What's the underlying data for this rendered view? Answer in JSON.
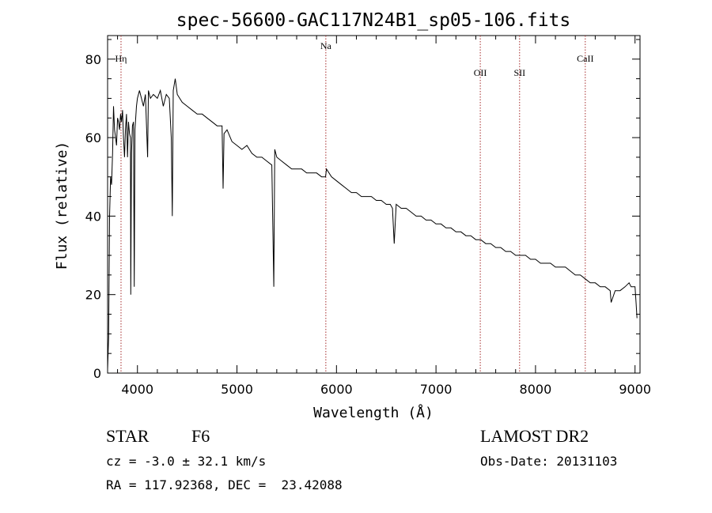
{
  "chart_data": {
    "type": "line",
    "title": "spec-56600-GAC117N24B1_sp05-106.fits",
    "xlabel": "Wavelength (Å)",
    "ylabel": "Flux (relative)",
    "xlim": [
      3700,
      9050
    ],
    "ylim": [
      0,
      86
    ],
    "xticks": [
      4000,
      5000,
      6000,
      7000,
      8000,
      9000
    ],
    "yticks": [
      0,
      20,
      40,
      60,
      80
    ],
    "grid": false,
    "lines": [
      {
        "label": "Hη",
        "x": 3835
      },
      {
        "label": "Na",
        "x": 5893
      },
      {
        "label": "OII",
        "x": 7445
      },
      {
        "label": "SII",
        "x": 7840
      },
      {
        "label": "CaII",
        "x": 8500
      }
    ],
    "series": [
      {
        "x": [
          3700,
          3710,
          3720,
          3730,
          3740,
          3750,
          3760,
          3770,
          3780,
          3790,
          3800,
          3810,
          3820,
          3830,
          3840,
          3850,
          3860,
          3870,
          3880,
          3890,
          3900,
          3910,
          3920,
          3930,
          3933,
          3940,
          3950,
          3960,
          3968,
          3975,
          3990,
          4000,
          4020,
          4040,
          4060,
          4080,
          4102,
          4110,
          4130,
          4160,
          4200,
          4230,
          4260,
          4290,
          4320,
          4340,
          4350,
          4360,
          4380,
          4400,
          4450,
          4500,
          4550,
          4600,
          4650,
          4700,
          4750,
          4800,
          4850,
          4861,
          4870,
          4900,
          4950,
          5000,
          5050,
          5100,
          5150,
          5200,
          5250,
          5300,
          5350,
          5370,
          5380,
          5400,
          5450,
          5500,
          5550,
          5600,
          5650,
          5700,
          5750,
          5800,
          5850,
          5890,
          5900,
          5950,
          6000,
          6050,
          6100,
          6150,
          6200,
          6250,
          6300,
          6350,
          6400,
          6450,
          6500,
          6540,
          6563,
          6580,
          6600,
          6650,
          6700,
          6750,
          6800,
          6850,
          6900,
          6950,
          7000,
          7050,
          7100,
          7150,
          7200,
          7250,
          7300,
          7350,
          7400,
          7450,
          7500,
          7550,
          7600,
          7650,
          7700,
          7750,
          7800,
          7850,
          7900,
          7950,
          8000,
          8050,
          8100,
          8150,
          8200,
          8250,
          8300,
          8350,
          8400,
          8450,
          8500,
          8550,
          8600,
          8650,
          8700,
          8750,
          8760,
          8800,
          8850,
          8900,
          8940,
          8960,
          8980,
          9000,
          9010,
          9020
        ],
        "y": [
          1,
          9,
          40,
          50,
          48,
          56,
          68,
          62,
          60,
          58,
          65,
          64,
          62,
          66,
          64,
          67,
          60,
          55,
          62,
          66,
          55,
          64,
          61,
          60,
          20,
          56,
          63,
          64,
          22,
          62,
          68,
          70,
          72,
          70,
          68,
          71,
          55,
          72,
          70,
          71,
          70,
          72,
          68,
          71,
          70,
          60,
          40,
          72,
          75,
          71,
          69,
          68,
          67,
          66,
          66,
          65,
          64,
          63,
          63,
          47,
          61,
          62,
          59,
          58,
          57,
          58,
          56,
          55,
          55,
          54,
          53,
          22,
          57,
          55,
          54,
          53,
          52,
          52,
          52,
          51,
          51,
          51,
          50,
          50,
          52,
          50,
          49,
          48,
          47,
          46,
          46,
          45,
          45,
          45,
          44,
          44,
          43,
          43,
          42,
          33,
          43,
          42,
          42,
          41,
          40,
          40,
          39,
          39,
          38,
          38,
          37,
          37,
          36,
          36,
          35,
          35,
          34,
          34,
          33,
          33,
          32,
          32,
          31,
          31,
          30,
          30,
          30,
          29,
          29,
          28,
          28,
          28,
          27,
          27,
          27,
          26,
          25,
          25,
          24,
          23,
          23,
          22,
          22,
          21,
          18,
          21,
          21,
          22,
          23,
          22,
          22,
          22,
          18,
          14
        ]
      }
    ]
  },
  "info": {
    "object_class": "STAR",
    "subclass": "F6",
    "survey": "LAMOST DR2",
    "velocity": "cz = -3.0 ± 32.1 km/s",
    "obs_date": "Obs-Date: 20131103",
    "coords": "RA = 117.92368, DEC =  23.42088"
  }
}
